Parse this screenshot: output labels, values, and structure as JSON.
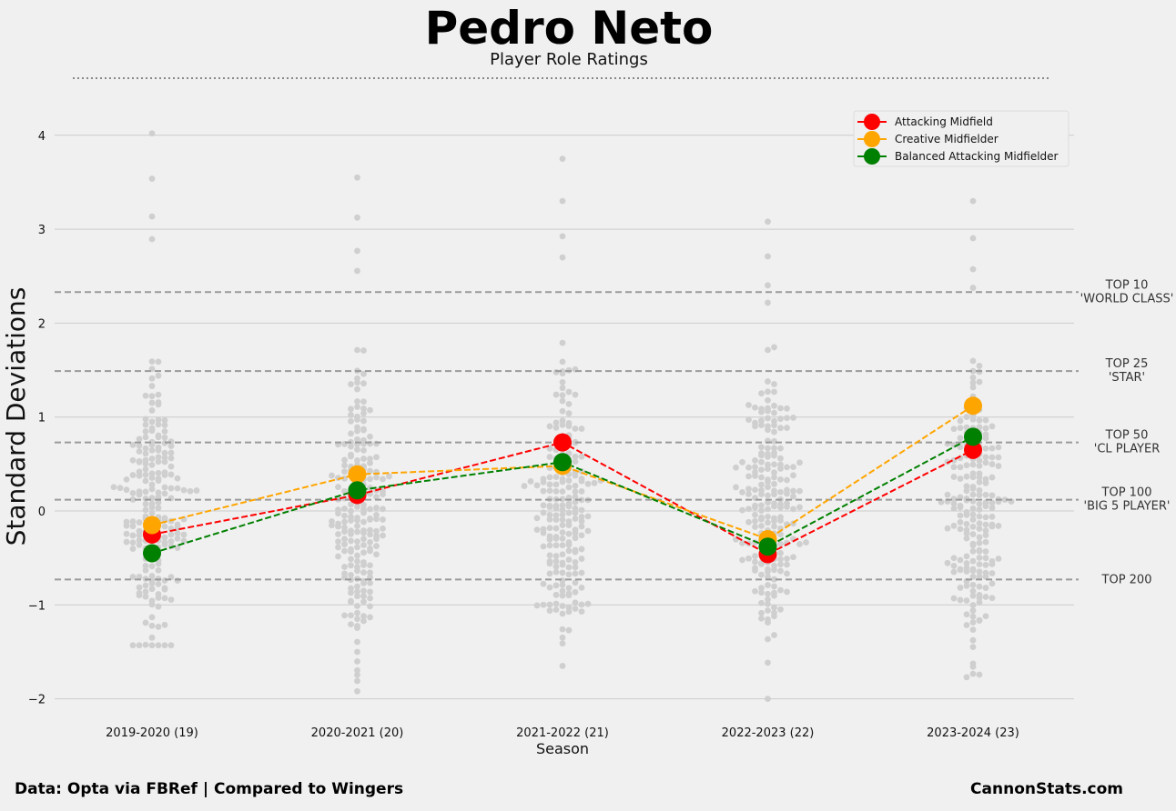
{
  "title": "Pedro Neto",
  "subtitle": "Player Role Ratings",
  "footer": {
    "source": "Data: Opta via FBRef | Compared to Wingers",
    "brand": "CannonStats.com"
  },
  "chart_data": {
    "type": "line",
    "xlabel": "Season",
    "ylabel": "Standard Deviations",
    "ylim": [
      -2.2,
      4.3
    ],
    "yticks": [
      -2,
      -1,
      0,
      1,
      2,
      3,
      4
    ],
    "categories": [
      "2019-2020 (19)",
      "2020-2021 (20)",
      "2021-2022 (21)",
      "2022-2023 (22)",
      "2023-2024 (23)"
    ],
    "grid": "horizontal",
    "legend_position": "top-right",
    "series": [
      {
        "name": "Attacking Midfield",
        "color": "#ff0000",
        "values": [
          -0.25,
          0.17,
          0.73,
          -0.46,
          0.65
        ]
      },
      {
        "name": "Creative Midfielder",
        "color": "#ffa500",
        "values": [
          -0.15,
          0.39,
          0.48,
          -0.3,
          1.12
        ]
      },
      {
        "name": "Balanced Attacking Midfielder",
        "color": "#008000",
        "values": [
          -0.45,
          0.22,
          0.52,
          -0.38,
          0.79
        ]
      }
    ],
    "thresholds": [
      {
        "value": 2.33,
        "label": [
          "TOP 10",
          "'WORLD CLASS'"
        ]
      },
      {
        "value": 1.49,
        "label": [
          "TOP 25",
          "'STAR'"
        ]
      },
      {
        "value": 0.73,
        "label": [
          "TOP 50",
          "'CL PLAYER"
        ]
      },
      {
        "value": 0.12,
        "label": [
          "TOP 100",
          "'BIG 5 PLAYER'"
        ]
      },
      {
        "value": -0.73,
        "label": [
          "TOP 200"
        ]
      }
    ],
    "swarm": {
      "color": "#cfcfcf",
      "points_per_season": 200,
      "max_values": [
        4.02,
        3.55,
        3.75,
        3.08,
        3.3
      ],
      "min_values": [
        -1.43,
        -1.92,
        -1.65,
        -2.0,
        -1.77
      ]
    }
  }
}
